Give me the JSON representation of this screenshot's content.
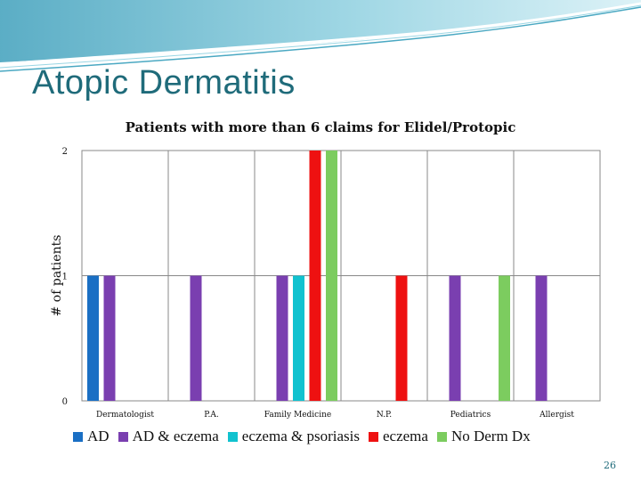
{
  "slide": {
    "title": "Atopic Dermatitis",
    "page_number": "26"
  },
  "colors": {
    "banner": "#5fb3c9",
    "title": "#1f6b7a",
    "series": [
      "#1a6fc4",
      "#7a3fb0",
      "#11c2cf",
      "#ee1111",
      "#7ccc5f"
    ]
  },
  "chart_data": {
    "type": "bar",
    "title": "Patients with more than 6 claims for Elidel/Protopic",
    "xlabel": "",
    "ylabel": "# of patients",
    "ylim": [
      0,
      2
    ],
    "yticks": [
      "0",
      "1",
      "2"
    ],
    "grid": true,
    "legend": "bottom",
    "categories": [
      "Dermatologist",
      "P.A.",
      "Family Medicine",
      "N.P.",
      "Pediatrics",
      "Allergist"
    ],
    "series": [
      {
        "name": "AD",
        "values": [
          1,
          0,
          0,
          0,
          0,
          0
        ]
      },
      {
        "name": "AD & eczema",
        "values": [
          1,
          1,
          1,
          0,
          1,
          1
        ]
      },
      {
        "name": "eczema & psoriasis",
        "values": [
          0,
          0,
          1,
          0,
          0,
          0
        ]
      },
      {
        "name": "eczema",
        "values": [
          0,
          0,
          2,
          1,
          0,
          0
        ]
      },
      {
        "name": "No Derm Dx",
        "values": [
          0,
          0,
          2,
          0,
          1,
          0
        ]
      }
    ]
  }
}
